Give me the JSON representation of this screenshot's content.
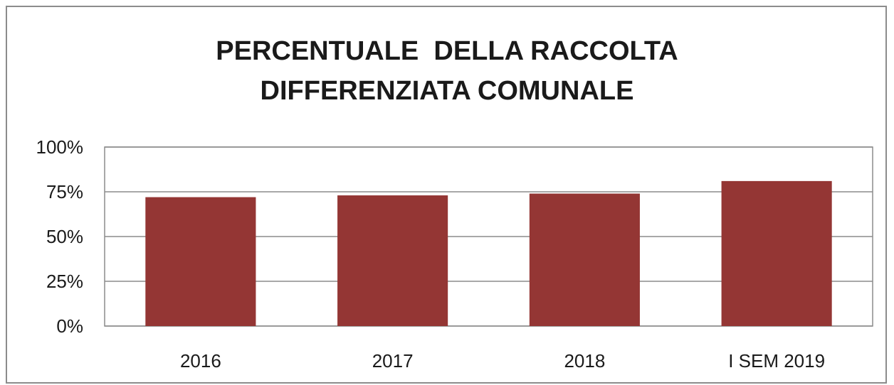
{
  "chart_data": {
    "type": "bar",
    "title_lines": [
      "PERCENTUALE  DELLA RACCOLTA",
      "DIFFERENZIATA COMUNALE"
    ],
    "categories": [
      "2016",
      "2017",
      "2018",
      "I SEM 2019"
    ],
    "values": [
      72,
      73,
      74,
      81
    ],
    "unit": "%",
    "ylim": [
      0,
      100
    ],
    "yticks": [
      "0%",
      "25%",
      "50%",
      "75%",
      "100%"
    ],
    "ytick_values": [
      0,
      25,
      50,
      75,
      100
    ],
    "grid": true,
    "legend": "none",
    "bar_color": "#943634"
  }
}
